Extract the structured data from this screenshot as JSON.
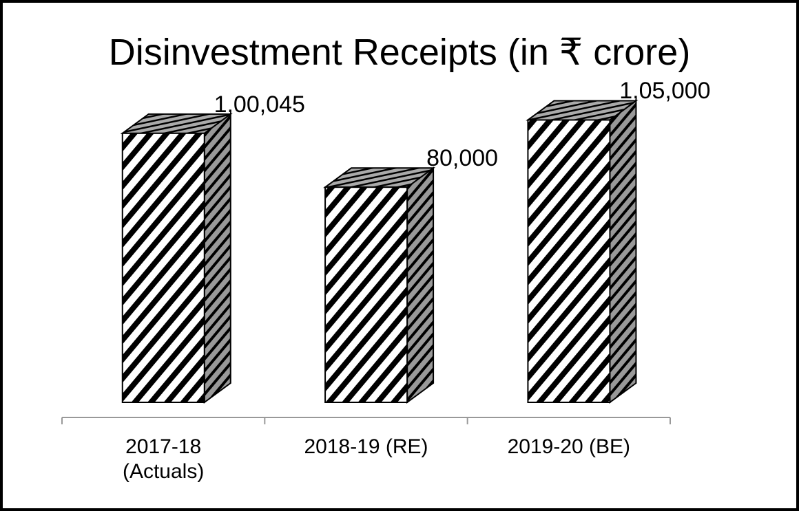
{
  "chart_data": {
    "type": "bar3d",
    "title": "Disinvestment Receipts (in ₹ crore)",
    "categories": [
      "2017-18\n(Actuals)",
      "2018-19 (RE)",
      "2019-20 (BE)"
    ],
    "values": [
      100045,
      80000,
      105000
    ],
    "value_labels": [
      "1,00,045",
      "80,000",
      "1,05,000"
    ]
  }
}
